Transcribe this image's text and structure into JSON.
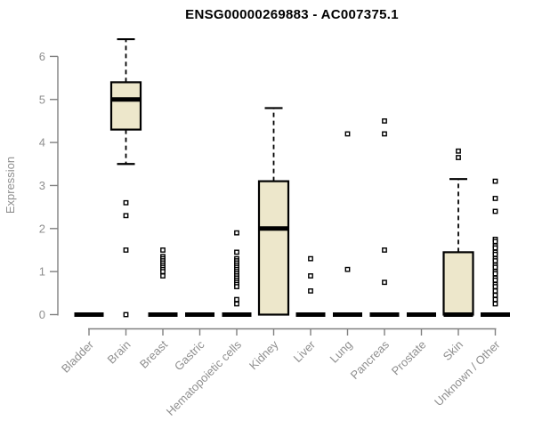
{
  "chart_data": {
    "type": "boxplot",
    "title": "ENSG00000269883 - AC007375.1",
    "ylabel": "Expression",
    "ylim": [
      0,
      6.5
    ],
    "yticks": [
      0,
      1,
      2,
      3,
      4,
      5,
      6
    ],
    "grid": false,
    "legend": "none",
    "box_fill": "#EDE7CB",
    "box_stroke": "#000000",
    "axis_color": "#808080",
    "label_color": "#8f8f8f",
    "title_color": "#000000",
    "categories": [
      "Bladder",
      "Brain",
      "Breast",
      "Gastric",
      "Hematopoietic cells",
      "Kidney",
      "Liver",
      "Lung",
      "Pancreas",
      "Prostate",
      "Skin",
      "Unknown / Other"
    ],
    "series": [
      {
        "category": "Bladder",
        "low": 0,
        "q1": 0,
        "median": 0,
        "q3": 0,
        "high": 0,
        "outliers": []
      },
      {
        "category": "Brain",
        "low": 3.5,
        "q1": 4.3,
        "median": 5.0,
        "q3": 5.4,
        "high": 6.4,
        "outliers": [
          2.6,
          2.3,
          1.5,
          0
        ]
      },
      {
        "category": "Breast",
        "low": 0,
        "q1": 0,
        "median": 0,
        "q3": 0,
        "high": 0,
        "outliers": [
          1.5,
          1.35,
          1.3,
          1.25,
          1.2,
          1.15,
          1.1,
          1.05,
          1.0,
          0.9
        ]
      },
      {
        "category": "Gastric",
        "low": 0,
        "q1": 0,
        "median": 0,
        "q3": 0,
        "high": 0,
        "outliers": []
      },
      {
        "category": "Hematopoietic cells",
        "low": 0,
        "q1": 0,
        "median": 0,
        "q3": 0,
        "high": 0,
        "outliers": [
          1.9,
          1.45,
          1.3,
          1.25,
          1.2,
          1.15,
          1.1,
          1.05,
          1.0,
          0.95,
          0.9,
          0.85,
          0.8,
          0.75,
          0.7,
          0.65,
          0.35,
          0.25
        ]
      },
      {
        "category": "Kidney",
        "low": 0,
        "q1": 0,
        "median": 2.0,
        "q3": 3.1,
        "high": 4.8,
        "outliers": []
      },
      {
        "category": "Liver",
        "low": 0,
        "q1": 0,
        "median": 0,
        "q3": 0,
        "high": 0,
        "outliers": [
          1.3,
          0.9,
          0.55
        ]
      },
      {
        "category": "Lung",
        "low": 0,
        "q1": 0,
        "median": 0,
        "q3": 0,
        "high": 0,
        "outliers": [
          4.2,
          1.05
        ]
      },
      {
        "category": "Pancreas",
        "low": 0,
        "q1": 0,
        "median": 0,
        "q3": 0,
        "high": 0,
        "outliers": [
          4.5,
          4.2,
          1.5,
          0.75
        ]
      },
      {
        "category": "Prostate",
        "low": 0,
        "q1": 0,
        "median": 0,
        "q3": 0,
        "high": 0,
        "outliers": []
      },
      {
        "category": "Skin",
        "low": 0,
        "q1": 0,
        "median": 0,
        "q3": 1.45,
        "high": 3.15,
        "outliers": [
          3.8,
          3.65
        ]
      },
      {
        "category": "Unknown / Other",
        "low": 0,
        "q1": 0,
        "median": 0,
        "q3": 0,
        "high": 0,
        "outliers": [
          3.1,
          2.7,
          2.4,
          1.75,
          1.7,
          1.6,
          1.55,
          1.45,
          1.4,
          1.3,
          1.25,
          1.15,
          1.1,
          1.0,
          0.95,
          0.85,
          0.8,
          0.7,
          0.65,
          0.55,
          0.45,
          0.35,
          0.25
        ]
      }
    ]
  }
}
